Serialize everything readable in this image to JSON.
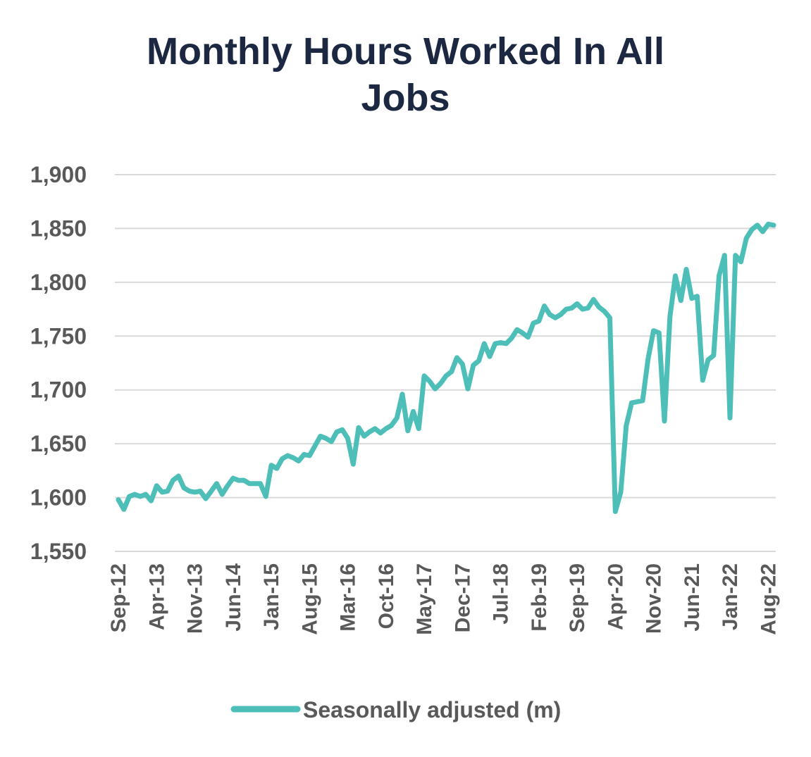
{
  "chart_data": {
    "type": "line",
    "title": "Monthly Hours Worked In All Jobs",
    "xlabel": "",
    "ylabel": "",
    "ylim": [
      1550,
      1900
    ],
    "yticks": [
      1550,
      1600,
      1650,
      1700,
      1750,
      1800,
      1850,
      1900
    ],
    "ytick_labels": [
      "1,550",
      "1,600",
      "1,650",
      "1,700",
      "1,750",
      "1,800",
      "1,850",
      "1,900"
    ],
    "x_tick_labels": [
      "Sep-12",
      "Apr-13",
      "Nov-13",
      "Jun-14",
      "Jan-15",
      "Aug-15",
      "Mar-16",
      "Oct-16",
      "May-17",
      "Dec-17",
      "Jul-18",
      "Feb-19",
      "Sep-19",
      "Apr-20",
      "Nov-20",
      "Jun-21",
      "Jan-22",
      "Aug-22"
    ],
    "grid": true,
    "legend_position": "bottom",
    "series": [
      {
        "name": "Seasonally adjusted (m)",
        "color": "#4dbfb8",
        "values": [
          1598,
          1589,
          1601,
          1603,
          1601,
          1603,
          1597,
          1611,
          1605,
          1606,
          1616,
          1620,
          1609,
          1606,
          1605,
          1606,
          1599,
          1606,
          1613,
          1603,
          1611,
          1618,
          1616,
          1616,
          1613,
          1613,
          1613,
          1601,
          1630,
          1627,
          1636,
          1639,
          1637,
          1634,
          1640,
          1639,
          1648,
          1657,
          1655,
          1652,
          1661,
          1663,
          1655,
          1631,
          1665,
          1657,
          1661,
          1664,
          1660,
          1664,
          1667,
          1674,
          1696,
          1662,
          1680,
          1664,
          1713,
          1708,
          1701,
          1706,
          1713,
          1717,
          1730,
          1724,
          1701,
          1723,
          1727,
          1743,
          1731,
          1743,
          1744,
          1743,
          1748,
          1756,
          1753,
          1749,
          1762,
          1764,
          1778,
          1770,
          1767,
          1770,
          1775,
          1776,
          1780,
          1775,
          1776,
          1784,
          1777,
          1773,
          1767,
          1587,
          1605,
          1667,
          1688,
          1689,
          1690,
          1729,
          1755,
          1753,
          1671,
          1768,
          1806,
          1783,
          1812,
          1785,
          1787,
          1709,
          1728,
          1732,
          1806,
          1825,
          1674,
          1825,
          1819,
          1841,
          1849,
          1853,
          1847,
          1854,
          1853
        ]
      }
    ]
  }
}
